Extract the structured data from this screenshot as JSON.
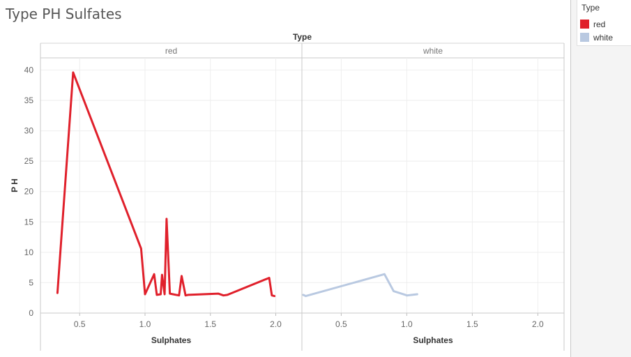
{
  "chart_data": {
    "type": "line",
    "title": "Type PH Sulfates",
    "column_header": "Type",
    "ylabel": "P H",
    "xlabel": "Sulphates",
    "ylim": [
      0,
      42
    ],
    "xlim": [
      0.2,
      2.2
    ],
    "yticks": [
      0,
      5,
      10,
      15,
      20,
      25,
      30,
      35,
      40
    ],
    "xticks": [
      0.5,
      1.0,
      1.5,
      2.0
    ],
    "xtick_labels": [
      "0.5",
      "1.0",
      "1.5",
      "2.0"
    ],
    "grid": true,
    "legend_position": "right",
    "panels": [
      {
        "name": "red",
        "color": "#e0202b",
        "points": [
          [
            0.33,
            3.3
          ],
          [
            0.45,
            39.6
          ],
          [
            0.97,
            10.6
          ],
          [
            1.0,
            3.1
          ],
          [
            1.07,
            6.4
          ],
          [
            1.09,
            3.0
          ],
          [
            1.12,
            3.1
          ],
          [
            1.13,
            6.3
          ],
          [
            1.15,
            3.1
          ],
          [
            1.165,
            15.5
          ],
          [
            1.19,
            3.2
          ],
          [
            1.26,
            2.9
          ],
          [
            1.28,
            6.1
          ],
          [
            1.31,
            2.9
          ],
          [
            1.33,
            3.0
          ],
          [
            1.56,
            3.2
          ],
          [
            1.6,
            2.9
          ],
          [
            1.63,
            3.0
          ],
          [
            1.95,
            5.8
          ],
          [
            1.97,
            2.9
          ],
          [
            1.99,
            2.8
          ]
        ]
      },
      {
        "name": "white",
        "color": "#b9c9e1",
        "points": [
          [
            0.21,
            3.0
          ],
          [
            0.23,
            2.8
          ],
          [
            0.83,
            6.4
          ],
          [
            0.9,
            3.6
          ],
          [
            0.99,
            3.0
          ],
          [
            1.0,
            2.9
          ],
          [
            1.08,
            3.1
          ]
        ]
      }
    ]
  },
  "legend": {
    "title": "Type",
    "items": [
      {
        "label": "red",
        "color": "#e0202b"
      },
      {
        "label": "white",
        "color": "#b9c9e1"
      }
    ]
  }
}
